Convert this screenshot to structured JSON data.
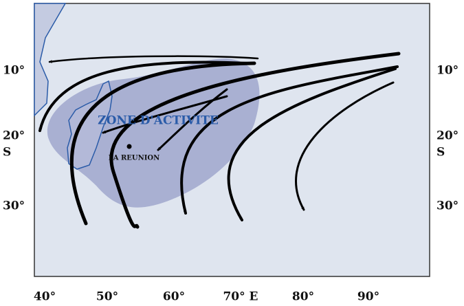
{
  "map": {
    "zone_label": "ZONE D'ACTIVITE",
    "place_label": "LA REUNION",
    "left_axis": {
      "latitudes": [
        "10°",
        "20°",
        "30°"
      ],
      "hemisphere": "S"
    },
    "right_axis": {
      "latitudes": [
        "10°",
        "20°",
        "30°"
      ],
      "hemisphere": "S"
    },
    "bottom_axis": {
      "longitudes": [
        "40°",
        "50°",
        "60°",
        "70° E",
        "80°",
        "90°"
      ]
    }
  }
}
